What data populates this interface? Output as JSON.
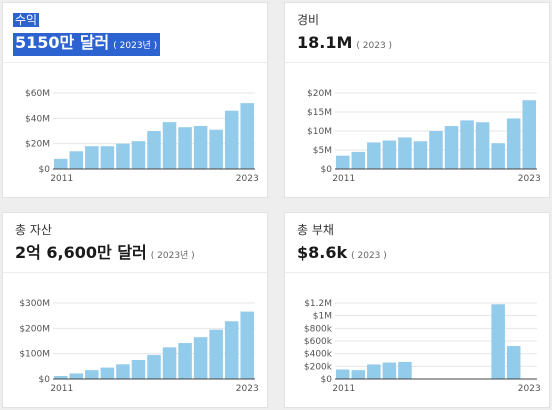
{
  "colors": {
    "bar": "#93cbeb",
    "axis": "#444444",
    "grid": "#e6e6e6",
    "selection": "#2d63d0"
  },
  "cards": [
    {
      "title": "수익",
      "value": "5150만 달러",
      "year_note": "( 2023년 )",
      "selected": true,
      "chart_data": {
        "type": "bar",
        "x": [
          2011,
          2012,
          2013,
          2014,
          2015,
          2016,
          2017,
          2018,
          2019,
          2020,
          2021,
          2022,
          2023
        ],
        "values": [
          8,
          14,
          18,
          18,
          20,
          22,
          30,
          37,
          33,
          34,
          31,
          46,
          52
        ],
        "ylim": [
          0,
          60
        ],
        "yticks": [
          "$0",
          "$20M",
          "$40M",
          "$60M"
        ],
        "ytick_values": [
          0,
          20,
          40,
          60
        ],
        "xticks": [
          "2011",
          "2023"
        ]
      }
    },
    {
      "title": "경비",
      "value": "18.1M",
      "year_note": "( 2023 )",
      "selected": false,
      "chart_data": {
        "type": "bar",
        "x": [
          2011,
          2012,
          2013,
          2014,
          2015,
          2016,
          2017,
          2018,
          2019,
          2020,
          2021,
          2022,
          2023
        ],
        "values": [
          3.5,
          4.5,
          7,
          7.5,
          8.3,
          7.3,
          10,
          11.3,
          12.8,
          12.3,
          6.8,
          13.3,
          18.1
        ],
        "ylim": [
          0,
          20
        ],
        "yticks": [
          "$0",
          "$5M",
          "$10M",
          "$15M",
          "$20M"
        ],
        "ytick_values": [
          0,
          5,
          10,
          15,
          20
        ],
        "xticks": [
          "2011",
          "2023"
        ]
      }
    },
    {
      "title": "총 자산",
      "value": "2억 6,600만 달러",
      "year_note": "( 2023년 )",
      "selected": false,
      "chart_data": {
        "type": "bar",
        "x": [
          2011,
          2012,
          2013,
          2014,
          2015,
          2016,
          2017,
          2018,
          2019,
          2020,
          2021,
          2022,
          2023
        ],
        "values": [
          12,
          22,
          35,
          45,
          58,
          75,
          95,
          125,
          142,
          165,
          195,
          228,
          266
        ],
        "ylim": [
          0,
          300
        ],
        "yticks": [
          "$0",
          "$100M",
          "$200M",
          "$300M"
        ],
        "ytick_values": [
          0,
          100,
          200,
          300
        ],
        "xticks": [
          "2011",
          "2023"
        ]
      }
    },
    {
      "title": "총 부채",
      "value": "$8.6k",
      "year_note": "( 2023 )",
      "selected": false,
      "chart_data": {
        "type": "bar",
        "x": [
          2011,
          2012,
          2013,
          2014,
          2015,
          2016,
          2017,
          2018,
          2019,
          2020,
          2021,
          2022,
          2023
        ],
        "values": [
          150,
          140,
          230,
          260,
          270,
          8,
          8,
          8,
          8,
          8,
          1180,
          520,
          8.6
        ],
        "ylim": [
          0,
          1200
        ],
        "yticks": [
          "$0",
          "$200k",
          "$400k",
          "$600k",
          "$800k",
          "$1M",
          "$1.2M"
        ],
        "ytick_values": [
          0,
          200,
          400,
          600,
          800,
          1000,
          1200
        ],
        "xticks": [
          "2011",
          "2023"
        ]
      }
    }
  ]
}
